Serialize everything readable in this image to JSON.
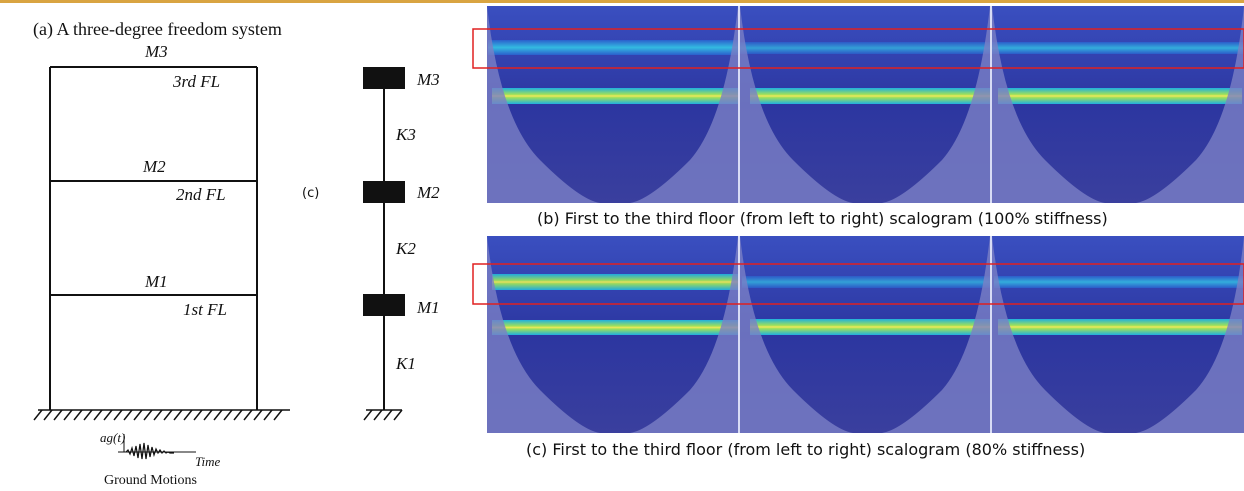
{
  "top_rule_color": "#d9a441",
  "frame_panel": {
    "title": "(a) A three-degree freedom system",
    "mass_labels": [
      "M3",
      "M2",
      "M1"
    ],
    "floor_labels": [
      "3rd FL",
      "2nd FL",
      "1st FL"
    ],
    "ground_caption": "Ground Motions",
    "accel_label": "ag(t)",
    "time_label": "Time"
  },
  "spring_panel": {
    "side_label": "(c)",
    "mass_labels": [
      "M3",
      "M2",
      "M1"
    ],
    "stiffness_labels": [
      "K3",
      "K2",
      "K1"
    ]
  },
  "scalogram_panels": [
    {
      "caption": "(b) First to the third floor (from left to right) scalogram (100% stiffness)",
      "stiffness_pct": 100
    },
    {
      "caption": "(c) First to the third floor (from left to right) scalogram (80% stiffness)",
      "stiffness_pct": 80
    }
  ],
  "colors": {
    "scalogram_bg": "#2e3aa6",
    "highlight_box": "#e02020",
    "ridge": "#f2e85a"
  }
}
